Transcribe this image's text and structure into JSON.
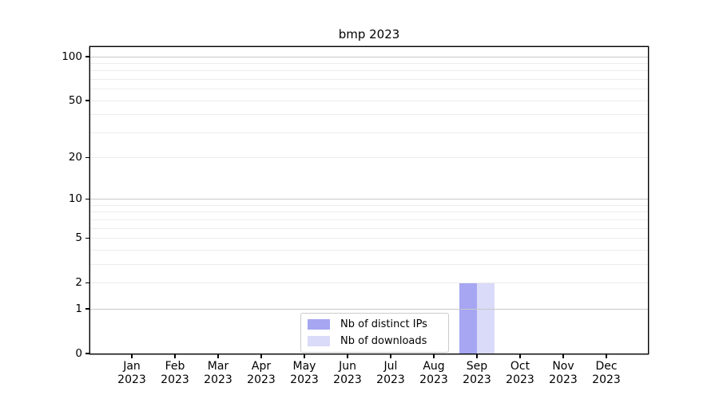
{
  "title": "bmp 2023",
  "chart_data": {
    "type": "bar",
    "title": "bmp 2023",
    "categories": [
      "Jan 2023",
      "Feb 2023",
      "Mar 2023",
      "Apr 2023",
      "May 2023",
      "Jun 2023",
      "Jul 2023",
      "Aug 2023",
      "Sep 2023",
      "Oct 2023",
      "Nov 2023",
      "Dec 2023"
    ],
    "series": [
      {
        "name": "Nb of distinct IPs",
        "color": "#a6a6f2",
        "values": [
          0,
          0,
          0,
          0,
          0,
          0,
          0,
          0,
          2,
          0,
          0,
          0
        ]
      },
      {
        "name": "Nb of downloads",
        "color": "#dadaf9",
        "values": [
          0,
          0,
          0,
          0,
          0,
          0,
          0,
          0,
          2,
          0,
          0,
          0
        ]
      }
    ],
    "xlabel": "",
    "ylabel": "",
    "yscale": "log10(1+y)",
    "ylim": [
      0,
      100
    ],
    "yticks": [
      0,
      1,
      2,
      5,
      10,
      20,
      50,
      100
    ],
    "grid": {
      "major_values": [
        1,
        10,
        100
      ],
      "minor_values": [
        2,
        3,
        4,
        5,
        6,
        7,
        8,
        9,
        20,
        30,
        40,
        50,
        60,
        70,
        80,
        90
      ],
      "major_color": "#c8c8c8",
      "minor_color": "#ececec"
    },
    "legend_position": "inside-bottom-center",
    "axis_color": "#000000",
    "legend_border_color": "#cbcbcb",
    "background_color": "#ffffff"
  }
}
